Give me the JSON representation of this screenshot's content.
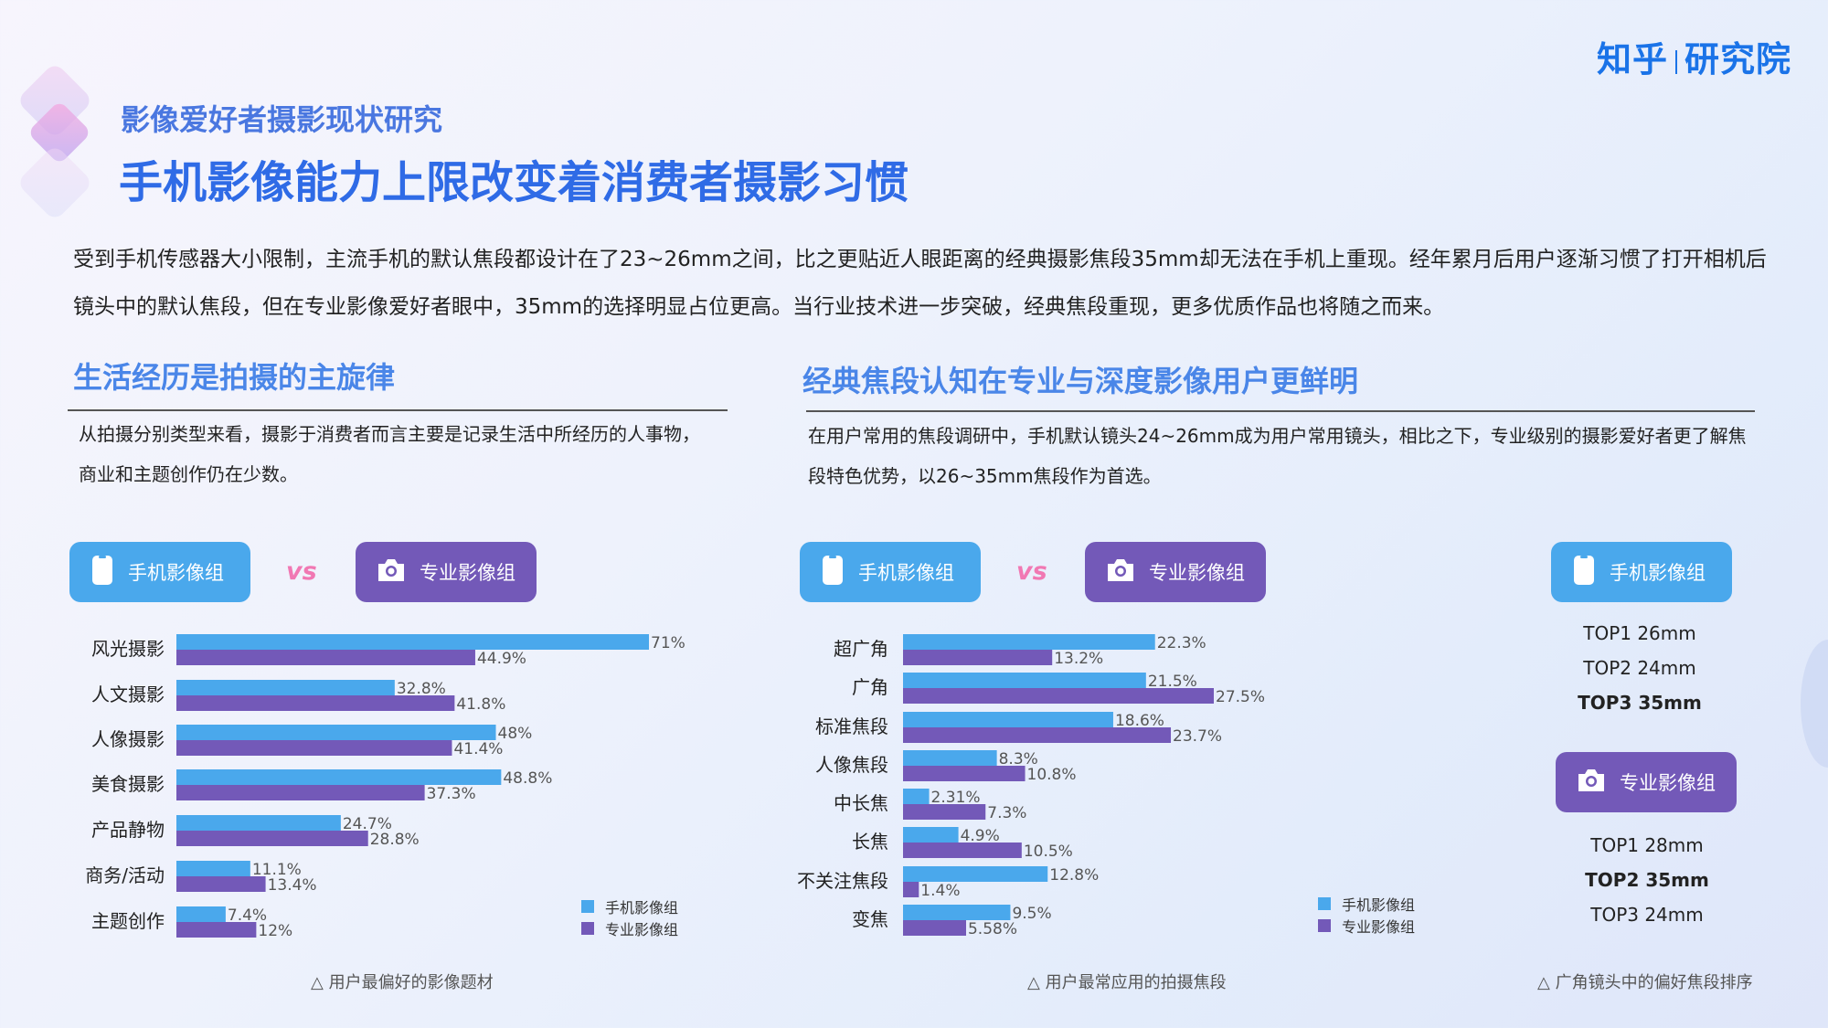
{
  "brand": {
    "logo_text": "知乎",
    "logo_sub": "研究院"
  },
  "header": {
    "kicker": "影像爱好者摄影现状研究",
    "title": "手机影像能力上限改变着消费者摄影习惯"
  },
  "intro": "受到手机传感器大小限制，主流手机的默认焦段都设计在了23~26mm之间，比之更贴近人眼距离的经典摄影焦段35mm却无法在手机上重现。经年累月后用户逐渐习惯了打开相机后镜头中的默认焦段，但在专业影像爱好者眼中，35mm的选择明显占位更高。当行业技术进一步突破，经典焦段重现，更多优质作品也将随之而来。",
  "left_section": {
    "heading": "生活经历是拍摄的主旋律",
    "desc": "从拍摄分别类型来看，摄影于消费者而言主要是记录生活中所经历的人事物，商业和主题创作仍在少数。",
    "pill_mobile": "手机影像组",
    "vs": "vs",
    "pill_pro": "专业影像组",
    "caption": "△ 用户最偏好的影像题材"
  },
  "right_section": {
    "heading": "经典焦段认知在专业与深度影像用户更鲜明",
    "desc": "在用户常用的焦段调研中，手机默认镜头24~26mm成为用户常用镜头，相比之下，专业级别的摄影爱好者更了解焦段特色优势，以26~35mm焦段作为首选。",
    "pill_mobile": "手机影像组",
    "vs": "vs",
    "pill_pro": "专业影像组",
    "caption": "△ 用户最常应用的拍摄焦段"
  },
  "ranking": {
    "mobile_label": "手机影像组",
    "mobile": [
      "TOP1 26mm",
      "TOP2 24mm",
      "TOP3 35mm"
    ],
    "pro_label": "专业影像组",
    "pro": [
      "TOP1 28mm",
      "TOP2 35mm",
      "TOP3 24mm"
    ],
    "caption": "△ 广角镜头中的偏好焦段排序"
  },
  "legend": {
    "mobile": "手机影像组",
    "pro": "专业影像组"
  },
  "colors": {
    "mobile": "#4aa8ec",
    "pro": "#7359b8",
    "accent": "#2f6be6",
    "vs": "#f178b3"
  },
  "chart_data": [
    {
      "type": "bar",
      "orientation": "horizontal",
      "categories": [
        "风光摄影",
        "人文摄影",
        "人像摄影",
        "美食摄影",
        "产品静物",
        "商务/活动",
        "主题创作"
      ],
      "series": [
        {
          "name": "手机影像组",
          "values": [
            71,
            32.8,
            48,
            48.8,
            24.7,
            11.1,
            7.4
          ],
          "labels": [
            "71%",
            "32.8%",
            "48%",
            "48.8%",
            "24.7%",
            "11.1%",
            "7.4%"
          ]
        },
        {
          "name": "专业影像组",
          "values": [
            44.9,
            41.8,
            41.4,
            37.3,
            28.8,
            13.4,
            12
          ],
          "labels": [
            "44.9%",
            "41.8%",
            "41.4%",
            "37.3%",
            "28.8%",
            "13.4%",
            "12%"
          ]
        }
      ],
      "xlim": [
        0,
        71
      ]
    },
    {
      "type": "bar",
      "orientation": "horizontal",
      "categories": [
        "超广角",
        "广角",
        "标准焦段",
        "人像焦段",
        "中长焦",
        "长焦",
        "不关注焦段",
        "变焦"
      ],
      "series": [
        {
          "name": "手机影像组",
          "values": [
            22.3,
            21.5,
            18.6,
            8.3,
            2.31,
            4.9,
            12.8,
            9.5
          ],
          "labels": [
            "22.3%",
            "21.5%",
            "18.6%",
            "8.3%",
            "2.31%",
            "4.9%",
            "12.8%",
            "9.5%"
          ]
        },
        {
          "name": "专业影像组",
          "values": [
            13.2,
            27.5,
            23.7,
            10.8,
            7.3,
            10.5,
            1.4,
            5.58
          ],
          "labels": [
            "13.2%",
            "27.5%",
            "23.7%",
            "10.8%",
            "7.3%",
            "10.5%",
            "1.4%",
            "5.58%"
          ]
        }
      ],
      "xlim": [
        0,
        27.5
      ]
    }
  ]
}
